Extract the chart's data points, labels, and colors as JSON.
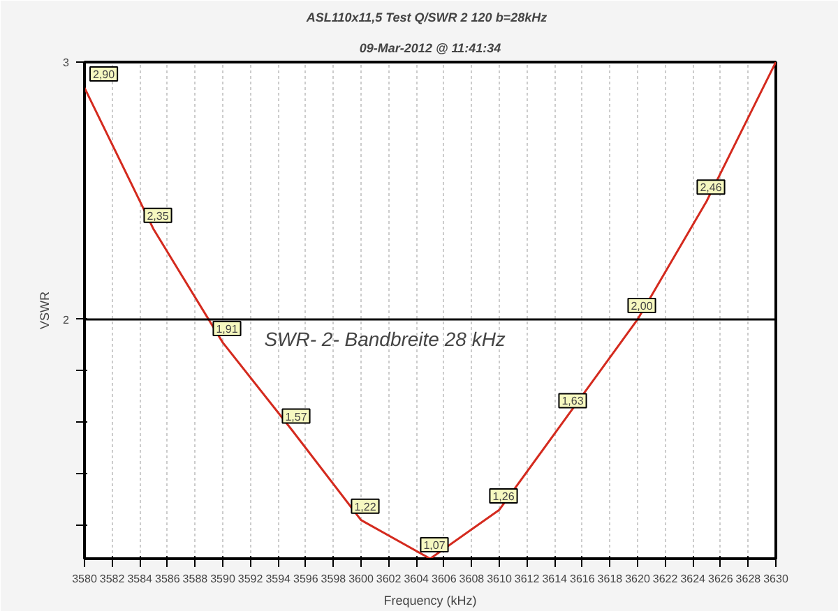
{
  "chart_data": {
    "type": "line",
    "title": "ASL110x11,5 Test Q/SWR 2  120  b=28kHz",
    "subtitle": "09-Mar-2012 @ 11:41:34",
    "xlabel": "Frequency (kHz)",
    "ylabel": "VSWR",
    "x": [
      3580,
      3585,
      3590,
      3595,
      3600,
      3605,
      3610,
      3615,
      3620,
      3625,
      3630
    ],
    "series": [
      {
        "color": "#d42a1e",
        "values": [
          2.9,
          2.35,
          1.91,
          1.57,
          1.22,
          1.07,
          1.26,
          1.63,
          2.0,
          2.46,
          3.0
        ],
        "value_labels": [
          "2,90",
          "2,35",
          "1,91",
          "1,57",
          "1,22",
          "1,07",
          "1,26",
          "1,63",
          "2,00",
          "2,46",
          null
        ]
      }
    ],
    "xlim": [
      3580,
      3630
    ],
    "xticks": [
      3580,
      3582,
      3584,
      3586,
      3588,
      3590,
      3592,
      3594,
      3596,
      3598,
      3600,
      3602,
      3604,
      3606,
      3608,
      3610,
      3612,
      3614,
      3616,
      3618,
      3620,
      3622,
      3624,
      3626,
      3628,
      3630
    ],
    "ylim": [
      1.07,
      3
    ],
    "yticks": [
      {
        "value": 1.2,
        "label": null
      },
      {
        "value": 1.4,
        "label": null
      },
      {
        "value": 1.6,
        "label": null
      },
      {
        "value": 1.8,
        "label": null
      },
      2,
      3
    ],
    "ref_lines": [
      {
        "axis": "y",
        "value": 2,
        "label": null,
        "color": "#000000"
      }
    ],
    "annotations": [
      "SWR- 2- Bandbreite 28 kHz"
    ],
    "grid": "x",
    "marker": "none",
    "line_style": "solid"
  }
}
